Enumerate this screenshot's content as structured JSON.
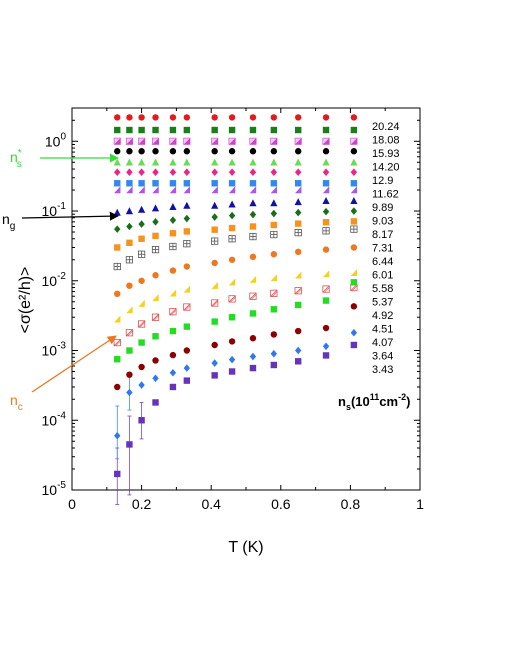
{
  "chart_data": {
    "type": "scatter",
    "xlabel": "T (K)",
    "ylabel": "<σ(e²/h)>",
    "yscale": "log",
    "xlim": [
      0,
      1
    ],
    "ylim": [
      1e-05,
      3
    ],
    "x_ticks": [
      "0",
      "0.2",
      "0.4",
      "0.6",
      "0.8",
      "1"
    ],
    "y_ticks": [
      {
        "base": "10",
        "exp": "-5",
        "value": 1e-05
      },
      {
        "base": "10",
        "exp": "-4",
        "value": 0.0001
      },
      {
        "base": "10",
        "exp": "-3",
        "value": 0.001
      },
      {
        "base": "10",
        "exp": "-2",
        "value": 0.01
      },
      {
        "base": "10",
        "exp": "-1",
        "value": 0.1
      },
      {
        "base": "10",
        "exp": "0",
        "value": 1
      }
    ],
    "legend_title": {
      "main": "n",
      "sub": "s",
      "mid": "(10",
      "sup1": "11",
      "unit": "cm",
      "sup2": "-2",
      "end": ")"
    },
    "legend_placement": "right",
    "series": [
      {
        "name": "20.24",
        "marker": "circle",
        "color": "#e41a1c",
        "points": [
          [
            0.13,
            2.2
          ],
          [
            0.165,
            2.2
          ],
          [
            0.2,
            2.2
          ],
          [
            0.24,
            2.2
          ],
          [
            0.29,
            2.2
          ],
          [
            0.33,
            2.2
          ],
          [
            0.41,
            2.2
          ],
          [
            0.46,
            2.2
          ],
          [
            0.52,
            2.2
          ],
          [
            0.58,
            2.2
          ],
          [
            0.65,
            2.2
          ],
          [
            0.73,
            2.2
          ],
          [
            0.81,
            2.2
          ]
        ]
      },
      {
        "name": "18.08",
        "marker": "square",
        "color": "#1a7f1a",
        "points": [
          [
            0.13,
            1.45
          ],
          [
            0.165,
            1.45
          ],
          [
            0.2,
            1.45
          ],
          [
            0.24,
            1.45
          ],
          [
            0.29,
            1.45
          ],
          [
            0.33,
            1.45
          ],
          [
            0.41,
            1.45
          ],
          [
            0.46,
            1.45
          ],
          [
            0.52,
            1.45
          ],
          [
            0.58,
            1.45
          ],
          [
            0.65,
            1.45
          ],
          [
            0.73,
            1.45
          ],
          [
            0.81,
            1.45
          ]
        ]
      },
      {
        "name": "15.93",
        "marker": "halfsquare",
        "color": "#cc44cc",
        "points": [
          [
            0.13,
            1.0
          ],
          [
            0.165,
            1.0
          ],
          [
            0.2,
            1.0
          ],
          [
            0.24,
            1.0
          ],
          [
            0.29,
            1.0
          ],
          [
            0.33,
            1.0
          ],
          [
            0.41,
            1.0
          ],
          [
            0.46,
            1.0
          ],
          [
            0.52,
            1.0
          ],
          [
            0.58,
            1.0
          ],
          [
            0.65,
            1.0
          ],
          [
            0.73,
            1.0
          ],
          [
            0.81,
            1.0
          ]
        ]
      },
      {
        "name": "14.20",
        "marker": "circle",
        "color": "#000000",
        "points": [
          [
            0.13,
            0.72
          ],
          [
            0.165,
            0.72
          ],
          [
            0.2,
            0.72
          ],
          [
            0.24,
            0.72
          ],
          [
            0.29,
            0.72
          ],
          [
            0.33,
            0.72
          ],
          [
            0.41,
            0.72
          ],
          [
            0.46,
            0.72
          ],
          [
            0.52,
            0.72
          ],
          [
            0.58,
            0.72
          ],
          [
            0.65,
            0.72
          ],
          [
            0.73,
            0.72
          ],
          [
            0.81,
            0.72
          ]
        ]
      },
      {
        "name": "12.9",
        "marker": "triangle",
        "color": "#66dd55",
        "points": [
          [
            0.13,
            0.5
          ],
          [
            0.165,
            0.5
          ],
          [
            0.2,
            0.5
          ],
          [
            0.24,
            0.5
          ],
          [
            0.29,
            0.5
          ],
          [
            0.33,
            0.5
          ],
          [
            0.41,
            0.5
          ],
          [
            0.46,
            0.5
          ],
          [
            0.52,
            0.5
          ],
          [
            0.58,
            0.5
          ],
          [
            0.65,
            0.5
          ],
          [
            0.73,
            0.5
          ],
          [
            0.81,
            0.5
          ]
        ]
      },
      {
        "name": "11.62",
        "marker": "diamond",
        "color": "#ee2288",
        "points": [
          [
            0.13,
            0.36
          ],
          [
            0.165,
            0.36
          ],
          [
            0.2,
            0.36
          ],
          [
            0.24,
            0.36
          ],
          [
            0.29,
            0.36
          ],
          [
            0.33,
            0.36
          ],
          [
            0.41,
            0.36
          ],
          [
            0.46,
            0.36
          ],
          [
            0.52,
            0.36
          ],
          [
            0.58,
            0.36
          ],
          [
            0.65,
            0.36
          ],
          [
            0.73,
            0.36
          ],
          [
            0.81,
            0.36
          ]
        ]
      },
      {
        "name": "9.89",
        "marker": "square",
        "color": "#3388ee",
        "points": [
          [
            0.13,
            0.25
          ],
          [
            0.165,
            0.25
          ],
          [
            0.2,
            0.25
          ],
          [
            0.24,
            0.25
          ],
          [
            0.29,
            0.25
          ],
          [
            0.33,
            0.25
          ],
          [
            0.41,
            0.25
          ],
          [
            0.46,
            0.25
          ],
          [
            0.52,
            0.25
          ],
          [
            0.58,
            0.25
          ],
          [
            0.65,
            0.25
          ],
          [
            0.73,
            0.25
          ],
          [
            0.81,
            0.25
          ]
        ]
      },
      {
        "name": "9.03",
        "marker": "halftriangle",
        "color": "#aa55ee",
        "points": [
          [
            0.13,
            0.2
          ],
          [
            0.165,
            0.2
          ],
          [
            0.2,
            0.2
          ],
          [
            0.24,
            0.2
          ],
          [
            0.29,
            0.2
          ],
          [
            0.33,
            0.2
          ],
          [
            0.41,
            0.2
          ],
          [
            0.46,
            0.2
          ],
          [
            0.52,
            0.2
          ],
          [
            0.58,
            0.2
          ],
          [
            0.65,
            0.2
          ],
          [
            0.73,
            0.2
          ],
          [
            0.81,
            0.2
          ]
        ]
      },
      {
        "name": "8.17",
        "marker": "triangle",
        "color": "#1111aa",
        "points": [
          [
            0.13,
            0.095
          ],
          [
            0.165,
            0.1
          ],
          [
            0.2,
            0.105
          ],
          [
            0.24,
            0.11
          ],
          [
            0.29,
            0.115
          ],
          [
            0.33,
            0.12
          ],
          [
            0.41,
            0.12
          ],
          [
            0.46,
            0.125
          ],
          [
            0.52,
            0.13
          ],
          [
            0.58,
            0.13
          ],
          [
            0.65,
            0.135
          ],
          [
            0.73,
            0.14
          ],
          [
            0.81,
            0.14
          ]
        ]
      },
      {
        "name": "7.31",
        "marker": "diamond",
        "color": "#1a6e1a",
        "points": [
          [
            0.13,
            0.055
          ],
          [
            0.165,
            0.06
          ],
          [
            0.2,
            0.065
          ],
          [
            0.24,
            0.07
          ],
          [
            0.29,
            0.074
          ],
          [
            0.33,
            0.078
          ],
          [
            0.41,
            0.082
          ],
          [
            0.46,
            0.086
          ],
          [
            0.52,
            0.089
          ],
          [
            0.58,
            0.092
          ],
          [
            0.65,
            0.095
          ],
          [
            0.73,
            0.098
          ],
          [
            0.81,
            0.1
          ]
        ]
      },
      {
        "name": "6.44",
        "marker": "square",
        "color": "#f7921e",
        "points": [
          [
            0.13,
            0.03
          ],
          [
            0.165,
            0.035
          ],
          [
            0.2,
            0.04
          ],
          [
            0.24,
            0.044
          ],
          [
            0.29,
            0.048
          ],
          [
            0.33,
            0.051
          ],
          [
            0.41,
            0.054
          ],
          [
            0.46,
            0.057
          ],
          [
            0.52,
            0.06
          ],
          [
            0.58,
            0.063
          ],
          [
            0.65,
            0.066
          ],
          [
            0.73,
            0.069
          ],
          [
            0.81,
            0.071
          ]
        ]
      },
      {
        "name": "6.01",
        "marker": "boxplus",
        "color": "#555555",
        "points": [
          [
            0.13,
            0.016
          ],
          [
            0.165,
            0.02
          ],
          [
            0.2,
            0.024
          ],
          [
            0.24,
            0.028
          ],
          [
            0.29,
            0.031
          ],
          [
            0.33,
            0.034
          ],
          [
            0.41,
            0.037
          ],
          [
            0.46,
            0.04
          ],
          [
            0.52,
            0.043
          ],
          [
            0.58,
            0.046
          ],
          [
            0.65,
            0.049
          ],
          [
            0.73,
            0.052
          ],
          [
            0.81,
            0.055
          ]
        ]
      },
      {
        "name": "5.58",
        "marker": "circle",
        "color": "#ee7722",
        "points": [
          [
            0.13,
            0.0065
          ],
          [
            0.165,
            0.0085
          ],
          [
            0.2,
            0.01
          ],
          [
            0.24,
            0.012
          ],
          [
            0.29,
            0.014
          ],
          [
            0.33,
            0.016
          ],
          [
            0.41,
            0.018
          ],
          [
            0.46,
            0.02
          ],
          [
            0.52,
            0.022
          ],
          [
            0.58,
            0.024
          ],
          [
            0.65,
            0.026
          ],
          [
            0.73,
            0.028
          ],
          [
            0.81,
            0.03
          ]
        ]
      },
      {
        "name": "5.37",
        "marker": "halftriangle",
        "color": "#f5d020",
        "points": [
          [
            0.13,
            0.0028
          ],
          [
            0.165,
            0.0038
          ],
          [
            0.2,
            0.0047
          ],
          [
            0.24,
            0.0057
          ],
          [
            0.29,
            0.0066
          ],
          [
            0.33,
            0.0075
          ],
          [
            0.41,
            0.0085
          ],
          [
            0.46,
            0.0095
          ],
          [
            0.52,
            0.0104
          ],
          [
            0.58,
            0.011
          ],
          [
            0.65,
            0.012
          ],
          [
            0.73,
            0.0125
          ],
          [
            0.81,
            0.013
          ]
        ]
      },
      {
        "name": "4.92",
        "marker": "boxx",
        "color": "#e05050",
        "points": [
          [
            0.13,
            0.0013
          ],
          [
            0.165,
            0.0018
          ],
          [
            0.2,
            0.0024
          ],
          [
            0.24,
            0.003
          ],
          [
            0.29,
            0.0036
          ],
          [
            0.33,
            0.0042
          ],
          [
            0.41,
            0.0048
          ],
          [
            0.46,
            0.0055
          ],
          [
            0.52,
            0.006
          ],
          [
            0.58,
            0.0066
          ],
          [
            0.65,
            0.0072
          ],
          [
            0.73,
            0.0076
          ],
          [
            0.81,
            0.008
          ]
        ]
      },
      {
        "name": "4.51",
        "marker": "square",
        "color": "#22dd22",
        "points": [
          [
            0.13,
            0.00075
          ],
          [
            0.165,
            0.001
          ],
          [
            0.2,
            0.0013
          ],
          [
            0.24,
            0.0016
          ],
          [
            0.29,
            0.0019
          ],
          [
            0.33,
            0.0022
          ],
          [
            0.41,
            0.0026
          ],
          [
            0.46,
            0.003
          ],
          [
            0.52,
            0.0034
          ],
          [
            0.58,
            0.0039
          ],
          [
            0.65,
            0.0045
          ],
          [
            0.73,
            0.0052
          ],
          [
            0.81,
            0.0095
          ]
        ]
      },
      {
        "name": "4.07",
        "marker": "circle",
        "color": "#8b0000",
        "points": [
          [
            0.13,
            0.0003
          ],
          [
            0.165,
            0.00045
          ],
          [
            0.2,
            0.00058
          ],
          [
            0.24,
            0.00072
          ],
          [
            0.29,
            0.00086
          ],
          [
            0.33,
            0.001
          ],
          [
            0.41,
            0.0012
          ],
          [
            0.46,
            0.00135
          ],
          [
            0.52,
            0.0015
          ],
          [
            0.58,
            0.0017
          ],
          [
            0.65,
            0.0019
          ],
          [
            0.73,
            0.0021
          ],
          [
            0.81,
            0.0043
          ]
        ]
      },
      {
        "name": "3.64",
        "marker": "diamond",
        "color": "#3377ee",
        "points": [
          [
            0.13,
            6e-05
          ],
          [
            0.165,
            0.00025
          ],
          [
            0.2,
            0.00032
          ],
          [
            0.24,
            0.0004
          ],
          [
            0.29,
            0.00048
          ],
          [
            0.33,
            0.00056
          ],
          [
            0.41,
            0.00066
          ],
          [
            0.46,
            0.00074
          ],
          [
            0.52,
            0.00082
          ],
          [
            0.58,
            0.0009
          ],
          [
            0.65,
            0.001
          ],
          [
            0.73,
            0.00115
          ],
          [
            0.81,
            0.0018
          ]
        ]
      },
      {
        "name": "3.43",
        "marker": "square",
        "color": "#6633bb",
        "points": [
          [
            0.13,
            1.7e-05
          ],
          [
            0.165,
            4.5e-05
          ],
          [
            0.2,
            0.0001
          ],
          [
            0.24,
            0.00018
          ],
          [
            0.29,
            0.0003
          ],
          [
            0.33,
            0.00037
          ],
          [
            0.41,
            0.00044
          ],
          [
            0.46,
            0.0005
          ],
          [
            0.52,
            0.00056
          ],
          [
            0.58,
            0.00062
          ],
          [
            0.65,
            0.0007
          ],
          [
            0.73,
            0.00085
          ],
          [
            0.81,
            0.0012
          ]
        ]
      }
    ],
    "error_bars": [
      {
        "series": "3.43",
        "x": 0.13,
        "y": 1.7e-05,
        "low": 6.2e-06,
        "high": 4e-05
      },
      {
        "series": "3.43",
        "x": 0.165,
        "y": 4.5e-05,
        "low": 8.5e-06,
        "high": 0.000115
      },
      {
        "series": "3.64",
        "x": 0.13,
        "y": 6e-05,
        "low": 2.8e-05,
        "high": 0.00016
      },
      {
        "series": "3.64",
        "x": 0.165,
        "y": 0.00025,
        "low": 0.00014,
        "high": 0.00045
      },
      {
        "series": "3.43",
        "x": 0.2,
        "y": 0.0001,
        "low": 5.4e-05,
        "high": 0.00018
      }
    ],
    "annotations": [
      {
        "name": "ns-star",
        "text": "n",
        "sup": "*",
        "sub": "s",
        "color": "#33dd33",
        "y": 0.63
      },
      {
        "name": "ng",
        "text": "n",
        "sub": "g",
        "color": "#000000",
        "y": 0.095
      },
      {
        "name": "nc",
        "text": "n",
        "sub": "c",
        "color": "#ee7722",
        "y": 9e-05
      }
    ]
  }
}
